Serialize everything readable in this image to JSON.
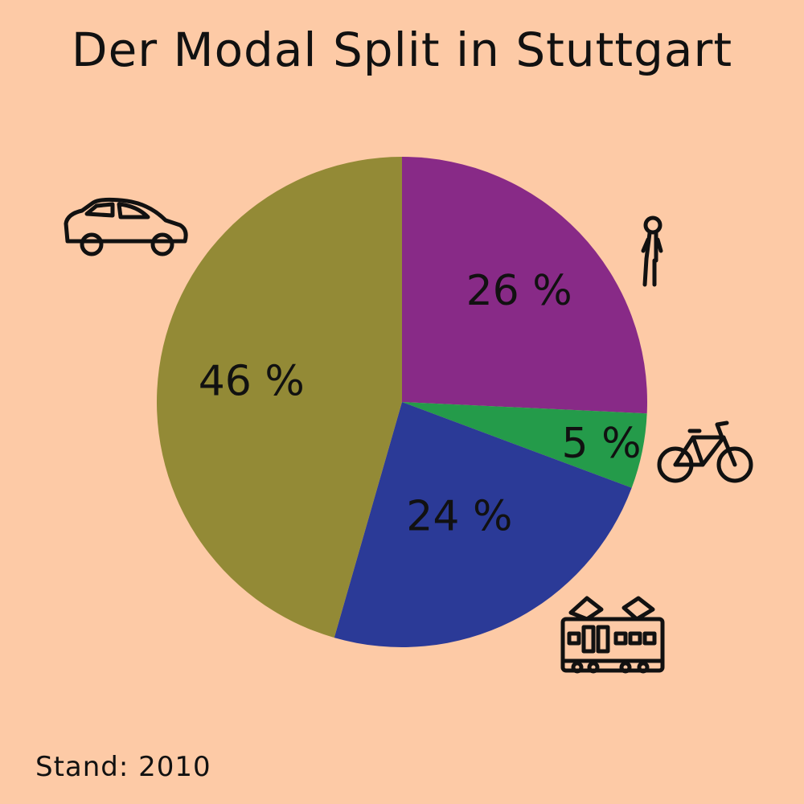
{
  "background": "#fdcaa6",
  "title": "Der Modal Split in Stuttgart",
  "footer": "Stand: 2010",
  "chart_data": {
    "type": "pie",
    "title": "Der Modal Split in Stuttgart",
    "unit": "%",
    "start_angle_deg": 0,
    "direction": "clockwise",
    "slices": [
      {
        "icon": "pedestrian-icon",
        "value": 26,
        "label": "26 %",
        "color": "#882a87"
      },
      {
        "icon": "bicycle-icon",
        "value": 5,
        "label": "5 %",
        "color": "#249b4a"
      },
      {
        "icon": "tram-icon",
        "value": 24,
        "label": "24 %",
        "color": "#2b3a97"
      },
      {
        "icon": "car-icon",
        "value": 46,
        "label": "46 %",
        "color": "#938a36"
      }
    ]
  }
}
